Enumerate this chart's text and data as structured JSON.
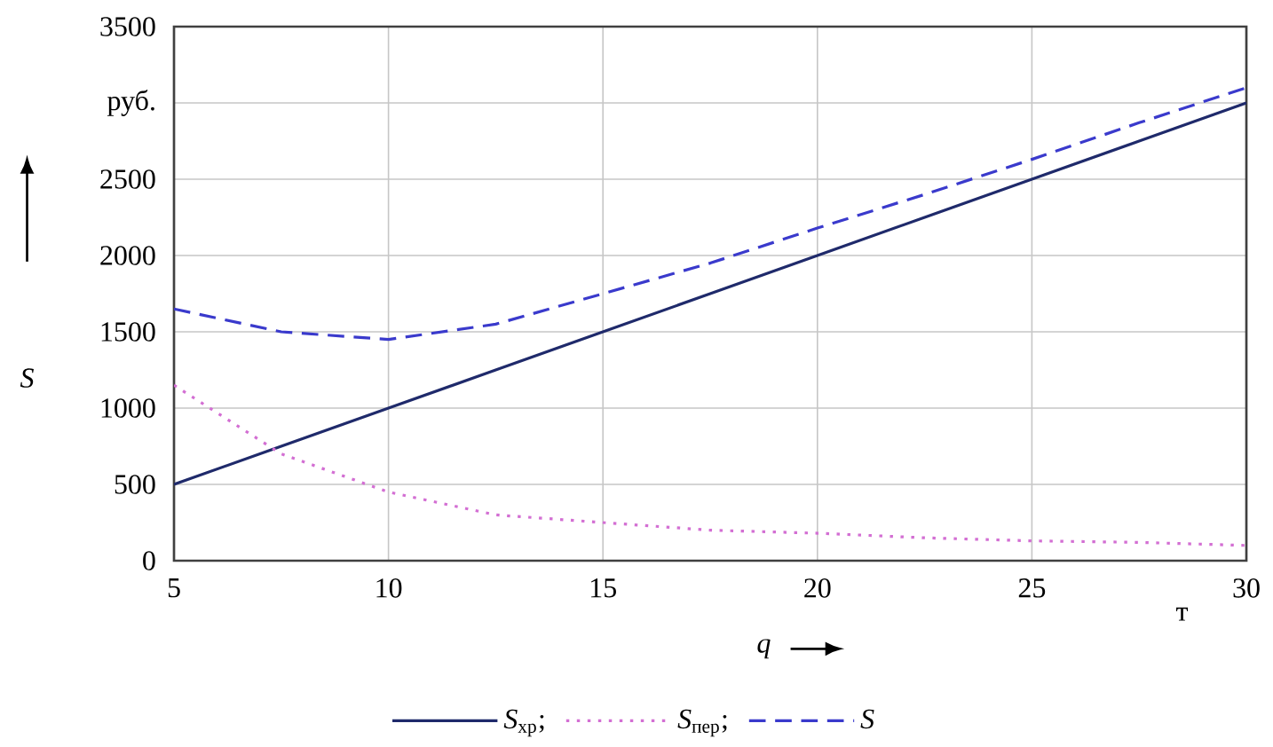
{
  "chart_data": {
    "type": "line",
    "xlabel": "*q*",
    "ylabel": "*S*",
    "x": [
      5,
      7.5,
      10,
      12.5,
      15,
      17.5,
      20,
      22.5,
      25,
      27.5,
      30
    ],
    "series": [
      {
        "name": "*S*$_{хр}$;",
        "color": "#1f2a6b",
        "line_style": "solid",
        "values": [
          500,
          750,
          1000,
          1250,
          1500,
          1750,
          2000,
          2250,
          2500,
          2750,
          3000
        ]
      },
      {
        "name": "*S*$_{пер}$;",
        "color": "#d36fd3",
        "line_style": "dotted",
        "values": [
          1150,
          700,
          450,
          300,
          250,
          200,
          180,
          150,
          130,
          120,
          100
        ]
      },
      {
        "name": "*S*",
        "color": "#3a3acc",
        "line_style": "dashed",
        "values": [
          1650,
          1500,
          1450,
          1550,
          1750,
          1950,
          2180,
          2400,
          2630,
          2870,
          3100
        ]
      }
    ],
    "xlim": [
      5,
      30
    ],
    "ylim": [
      0,
      3500
    ],
    "xticks": [
      5,
      10,
      15,
      20,
      25,
      30
    ],
    "yticks": [
      0,
      500,
      1000,
      1500,
      2000,
      2500,
      {
        "value": 3000,
        "label": "руб."
      },
      3500
    ],
    "annotations": [
      "т"
    ],
    "grid": true,
    "legend": "bottom"
  }
}
